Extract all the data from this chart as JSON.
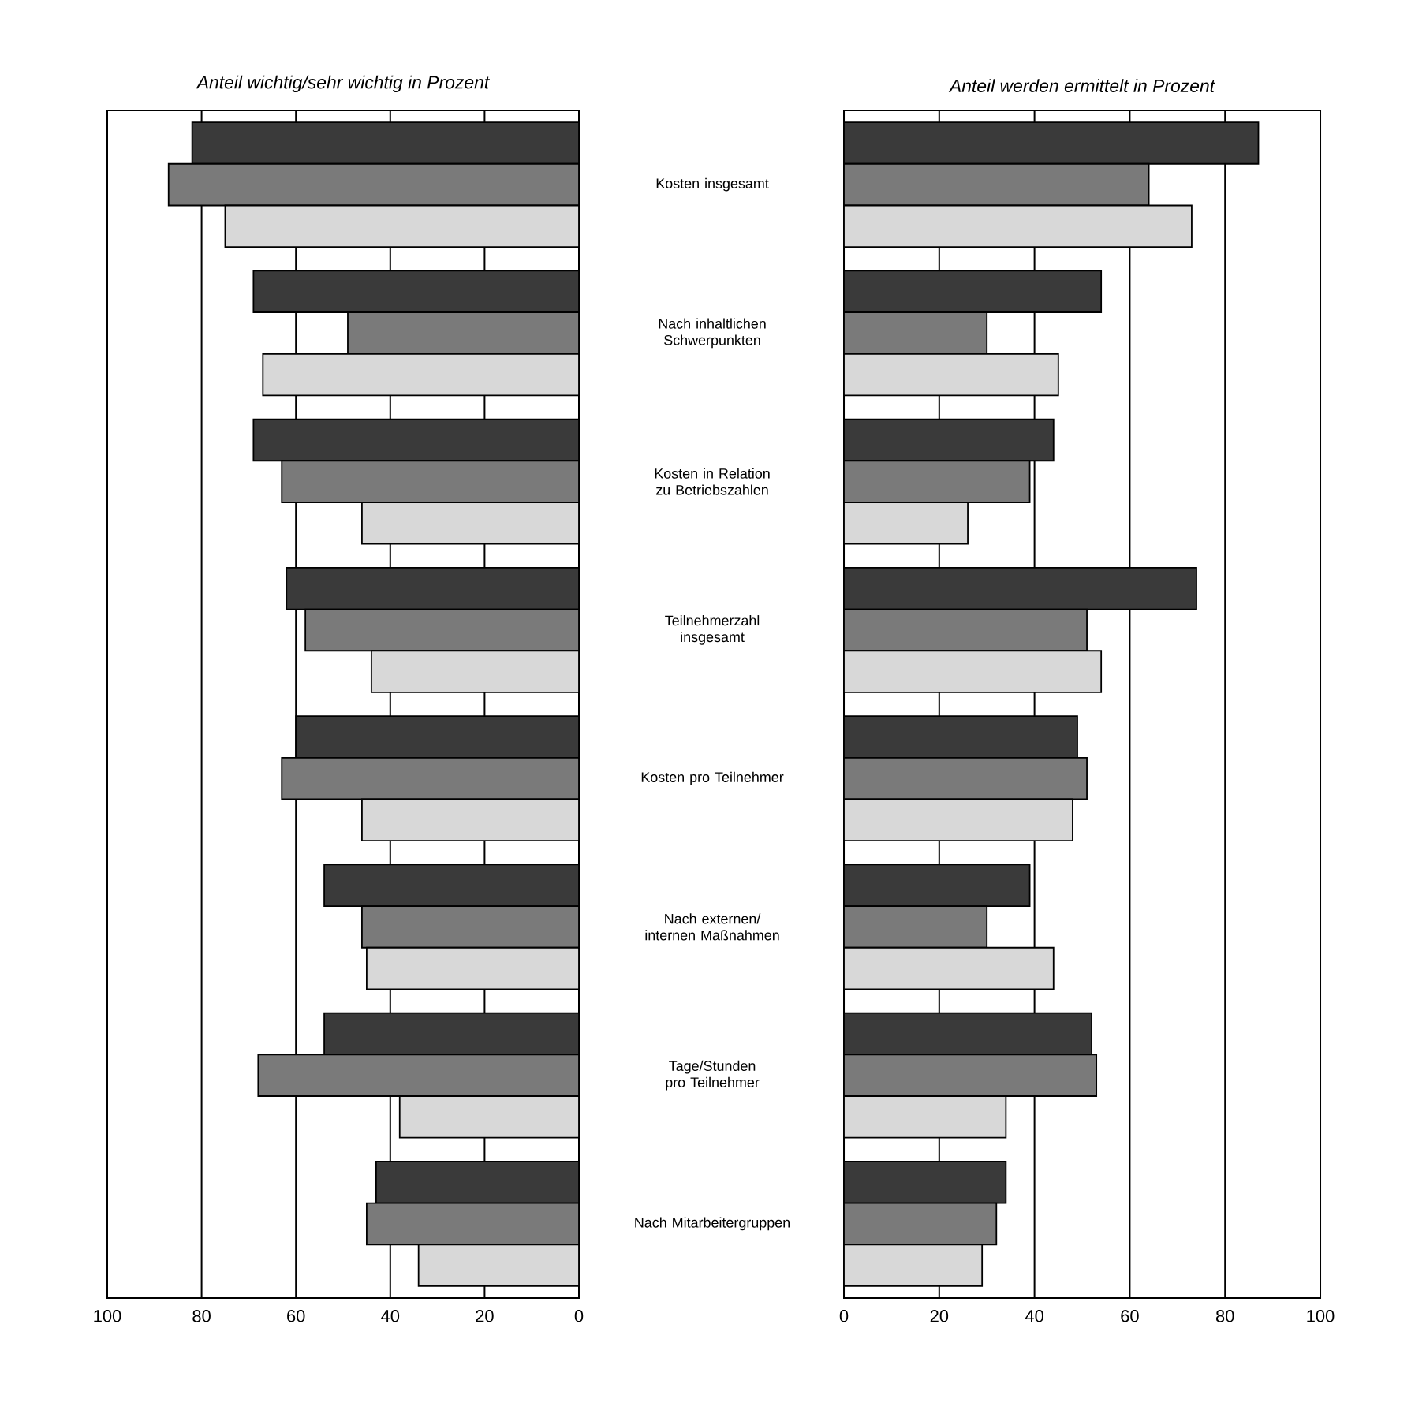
{
  "chart_data": [
    {
      "type": "bar",
      "orientation": "horizontal",
      "title": "Anteil wichtig/sehr wichtig in Prozent",
      "categories": [
        "Kosten insgesamt",
        "Nach inhaltlichen Schwerpunkten",
        "Kosten in Relation zu Betriebszahlen",
        "Teilnehmerzahl insgesamt",
        "Kosten pro Teilnehmer",
        "Nach externen/ internen Maßnahmen",
        "Tage/Stunden pro Teilnehmer",
        "Nach Mitarbeitergruppen"
      ],
      "series": [
        {
          "color": "#3a3a3a",
          "values": [
            82,
            69,
            69,
            62,
            60,
            54,
            54,
            43
          ]
        },
        {
          "color": "#7a7a7a",
          "values": [
            87,
            49,
            63,
            58,
            63,
            46,
            68,
            45
          ]
        },
        {
          "color": "#d8d8d8",
          "values": [
            75,
            67,
            46,
            44,
            46,
            45,
            38,
            34
          ]
        }
      ],
      "xlim": [
        100,
        0
      ],
      "xticks": [
        100,
        80,
        60,
        40,
        20,
        0
      ],
      "grid": "x"
    },
    {
      "type": "bar",
      "orientation": "horizontal",
      "title": "Anteil werden ermittelt in Prozent",
      "categories": [
        null,
        null,
        null,
        null,
        null,
        null,
        null,
        null
      ],
      "series": [
        {
          "color": "#3a3a3a",
          "values": [
            87,
            54,
            44,
            74,
            49,
            39,
            52,
            34
          ]
        },
        {
          "color": "#7a7a7a",
          "values": [
            64,
            30,
            39,
            51,
            51,
            30,
            53,
            32
          ]
        },
        {
          "color": "#d8d8d8",
          "values": [
            73,
            45,
            26,
            54,
            48,
            44,
            34,
            29
          ]
        }
      ],
      "xlim": [
        0,
        100
      ],
      "xticks": [
        0,
        20,
        40,
        60,
        80,
        100
      ],
      "grid": "x",
      "tick_labels": "x"
    }
  ]
}
